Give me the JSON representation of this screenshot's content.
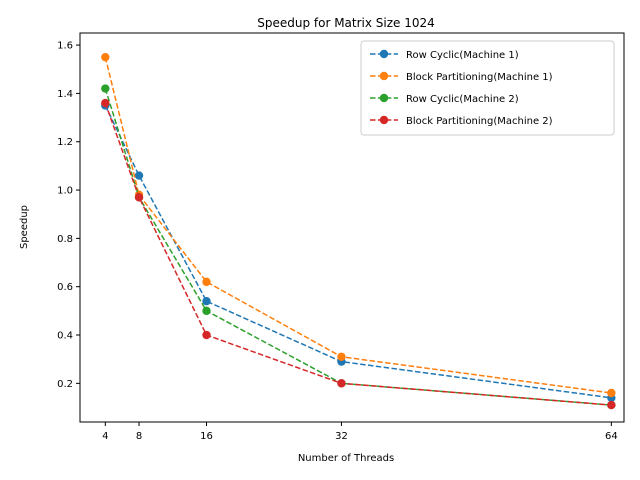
{
  "chart_data": {
    "type": "line",
    "title": "Speedup for Matrix Size 1024",
    "xlabel": "Number of Threads",
    "ylabel": "Speedup",
    "x": [
      4,
      8,
      16,
      32,
      64
    ],
    "xticks": [
      4,
      8,
      16,
      32,
      64
    ],
    "yticks": [
      0.2,
      0.4,
      0.6,
      0.8,
      1.0,
      1.2,
      1.4,
      1.6
    ],
    "ytick_labels": [
      "0.2",
      "0.4",
      "0.6",
      "0.8",
      "1.0",
      "1.2",
      "1.4",
      "1.6"
    ],
    "xlim": [
      1,
      65.5
    ],
    "ylim": [
      0.04,
      1.65
    ],
    "grid": false,
    "legend_position": "top-right",
    "series": [
      {
        "name": "Row Cyclic(Machine 1)",
        "color": "#1f77b4",
        "values": [
          1.35,
          1.06,
          0.54,
          0.29,
          0.14
        ]
      },
      {
        "name": "Block Partitioning(Machine 1)",
        "color": "#ff7f0e",
        "values": [
          1.55,
          0.98,
          0.62,
          0.31,
          0.16
        ]
      },
      {
        "name": "Row Cyclic(Machine 2)",
        "color": "#2ca02c",
        "values": [
          1.42,
          0.97,
          0.5,
          0.2,
          0.11
        ]
      },
      {
        "name": "Block Partitioning(Machine 2)",
        "color": "#d62728",
        "values": [
          1.36,
          0.97,
          0.4,
          0.2,
          0.11
        ]
      }
    ]
  }
}
